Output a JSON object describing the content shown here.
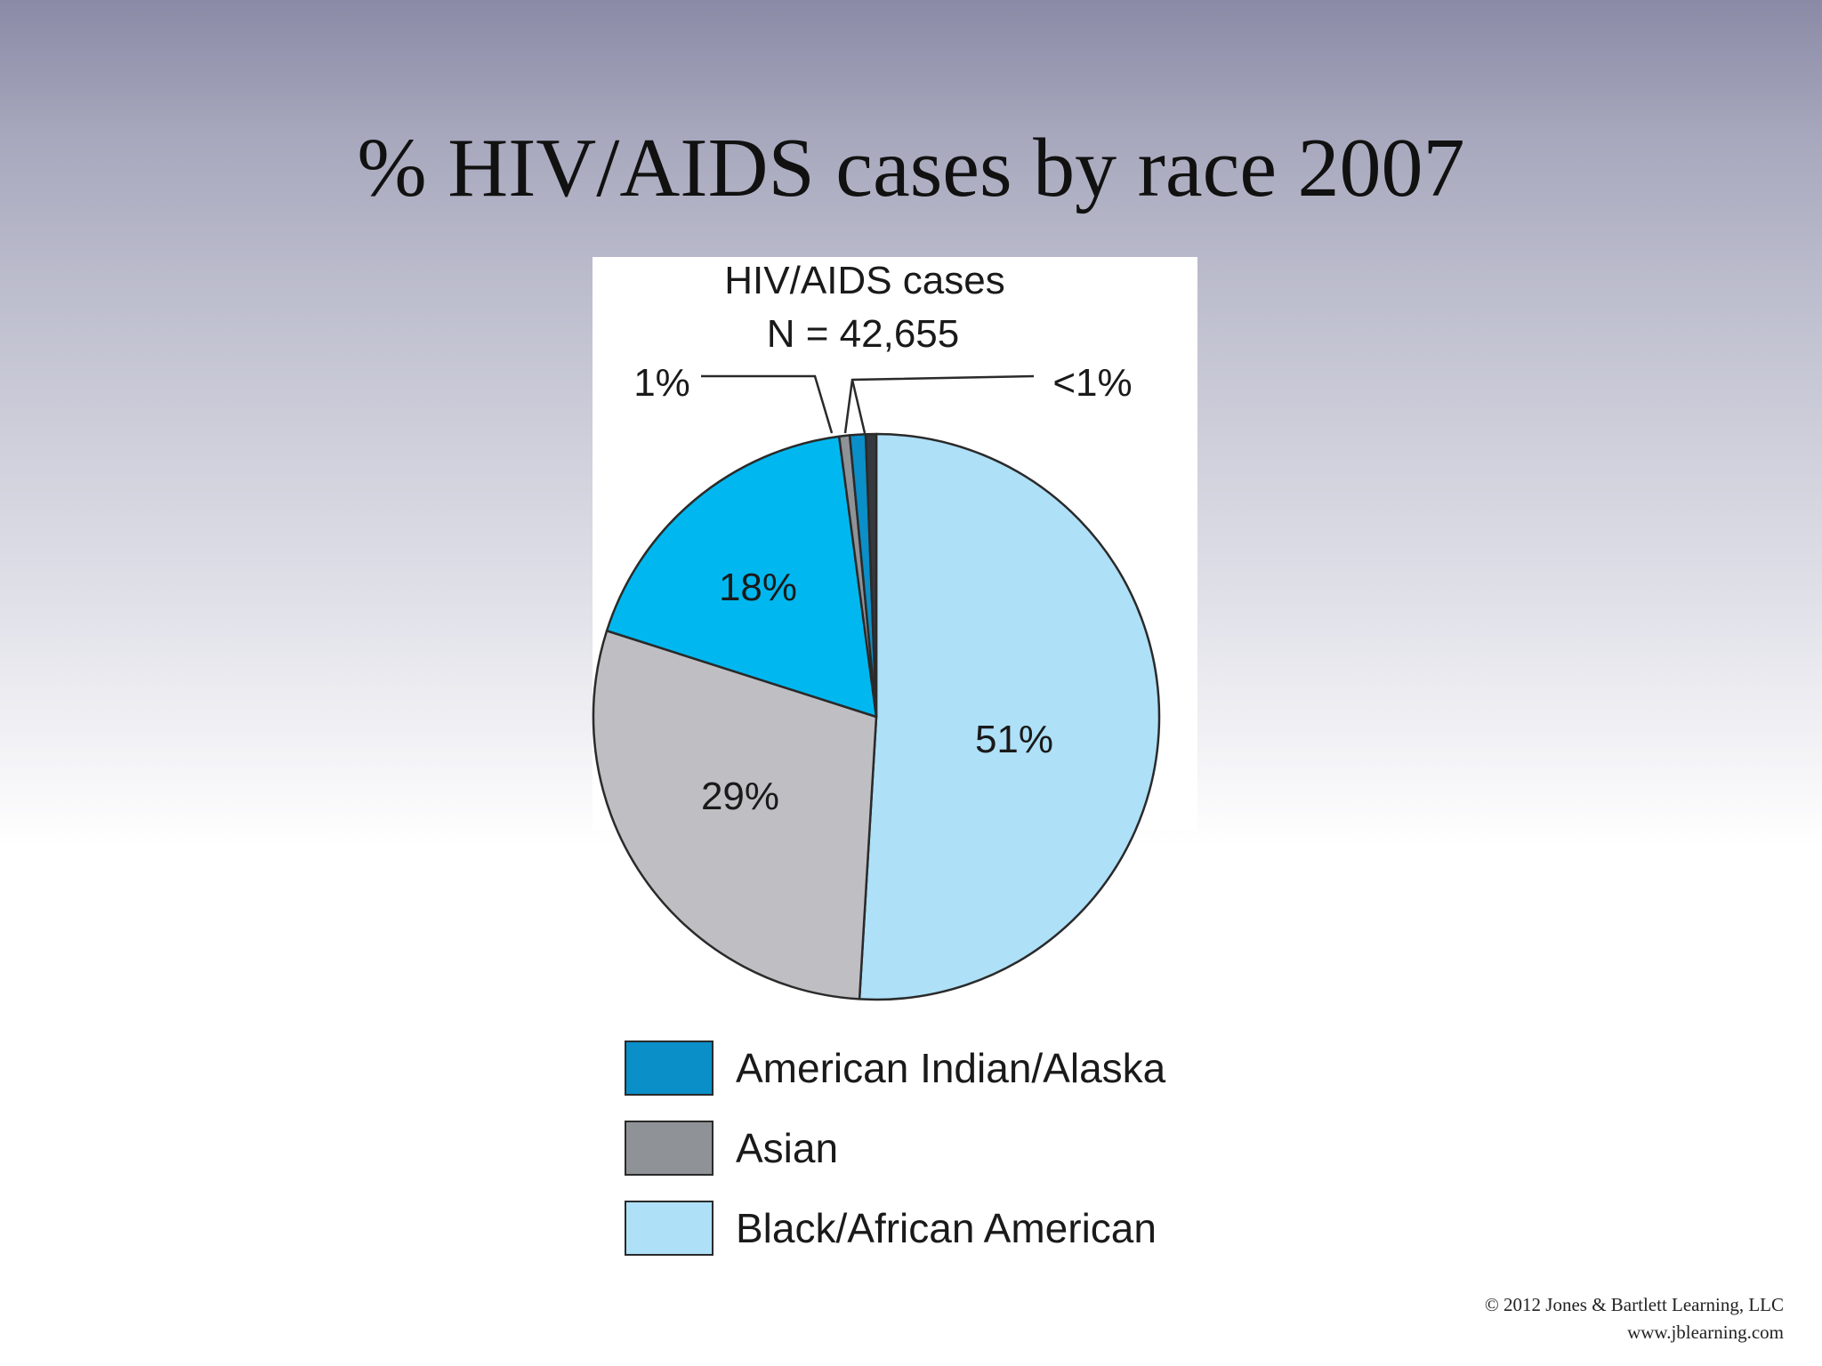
{
  "slide": {
    "title": "% HIV/AIDS cases by race 2007",
    "copyright_line1": "© 2012 Jones & Bartlett Learning, LLC",
    "copyright_line2": "www.jblearning.com"
  },
  "chart_data": {
    "type": "pie",
    "title": "HIV/AIDS cases",
    "subtitle": "N = 42,655",
    "grid": false,
    "legend_position": "bottom",
    "slices": [
      {
        "name": "Black/African American",
        "value": 51,
        "label": "51%",
        "color": "#aee0f7"
      },
      {
        "name": "",
        "value": 29,
        "label": "29%",
        "color": "#bfbfc3"
      },
      {
        "name": "",
        "value": 18,
        "label": "18%",
        "color": "#00b8ef"
      },
      {
        "name": "Asian",
        "value": 0.6,
        "label": "1%",
        "color": "#8f9296"
      },
      {
        "name": "American Indian/Alaska",
        "value": 0.9,
        "label": "<1%",
        "color": "#0a8fc8"
      },
      {
        "name": "",
        "value": 0.6,
        "label": "",
        "color": "#35383c"
      }
    ],
    "legend": [
      {
        "label": "American Indian/Alaska",
        "color": "#0a8fc8"
      },
      {
        "label": "Asian",
        "color": "#8f9296"
      },
      {
        "label": "Black/African American",
        "color": "#aee0f7"
      }
    ]
  }
}
